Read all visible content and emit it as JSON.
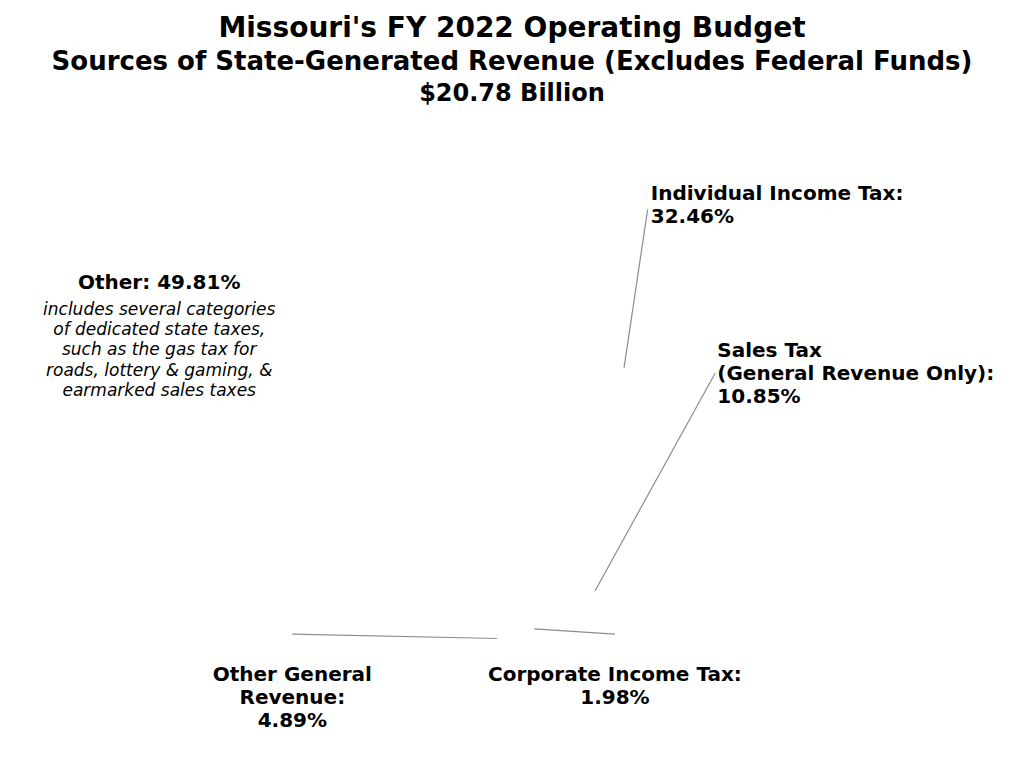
{
  "chart_data": {
    "type": "pie",
    "title": "Missouri's FY 2022 Operating Budget",
    "subtitle": "Sources of State-Generated Revenue (Excludes Federal Funds)\n$20.78 Billion",
    "categories": [
      "Individual Income Tax",
      "Sales Tax\n(General Revenue Only)",
      "Corporate Income Tax",
      "Other General\nRevenue",
      "Other"
    ],
    "values": [
      32.46,
      10.85,
      1.98,
      4.89,
      49.81
    ],
    "colors": [
      "#2d4a6b",
      "#7a9dbf",
      "#111111",
      "#d0d0d0",
      "#b8b8b8"
    ],
    "data_labels": true,
    "value_labels": [
      "Individual Income Tax:\n32.46%",
      "Sales Tax\n(General Revenue Only):\n10.85%",
      "Corporate Income Tax:\n1.98%",
      "Other General\nRevenue:\n4.89%",
      "Other: 49.81%"
    ],
    "annotations": [
      "includes several categories\nof dedicated state taxes,\nsuch as the gas tax for\nroads, lottery & gaming, &\nearmarked sales taxes"
    ]
  }
}
